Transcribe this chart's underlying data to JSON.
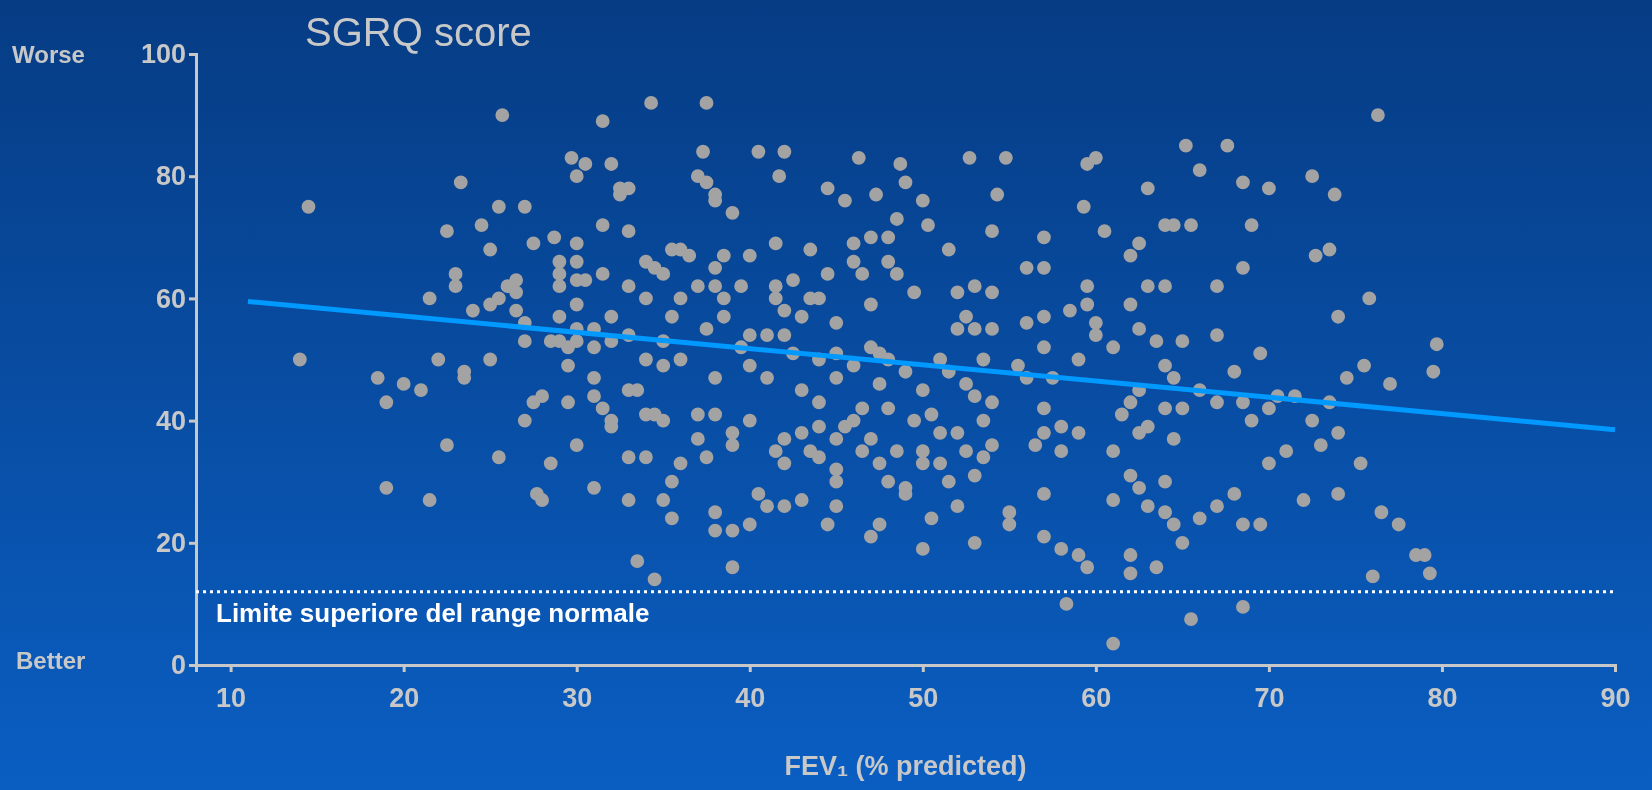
{
  "chart_data": {
    "type": "scatter",
    "title": "SGRQ score",
    "xlabel": "FEV₁ (% predicted)",
    "xlim": [
      8,
      90
    ],
    "ylim": [
      0,
      100
    ],
    "xticks": [
      10,
      20,
      30,
      40,
      50,
      60,
      70,
      80,
      90
    ],
    "yticks": [
      0,
      20,
      40,
      60,
      80,
      100
    ],
    "grid": false,
    "annotations": [
      "Worse",
      "Better"
    ],
    "ref_lines": [
      {
        "axis": "y",
        "value": 12,
        "label": "Limite superiore del range normale",
        "color": "#ffffff",
        "line_style": "dotted"
      }
    ],
    "series": [
      {
        "marker": "circle",
        "color": "#a3a3a3",
        "x": [
          14.5,
          14,
          18.5,
          19,
          19,
          20,
          21,
          21.5,
          21.5,
          22,
          22.5,
          22.5,
          23,
          23,
          23.3,
          23.5,
          23.5,
          24,
          24.5,
          25,
          25,
          25,
          25.5,
          25.5,
          25.5,
          25.7,
          26,
          26.5,
          26.5,
          26.5,
          27,
          27,
          27,
          27,
          27.5,
          27.5,
          27.7,
          28,
          28,
          28.5,
          28.5,
          28.7,
          29,
          29,
          29,
          29,
          29,
          29.5,
          29.5,
          29.5,
          29.7,
          30,
          30,
          30,
          30,
          30,
          30,
          30,
          30,
          30.5,
          30.5,
          31,
          31,
          31,
          31,
          31,
          31.5,
          31.5,
          31.5,
          31.5,
          32,
          32,
          32,
          32,
          32,
          32.5,
          32.5,
          33,
          33,
          33,
          33,
          33,
          33,
          33,
          33.5,
          33.5,
          34,
          34,
          34,
          34,
          34,
          34.3,
          34.5,
          34.5,
          34.5,
          35,
          35,
          35,
          35,
          35,
          35.5,
          35.5,
          35.5,
          35.5,
          36,
          36,
          36,
          36,
          36.5,
          37,
          37,
          37,
          37,
          37.3,
          37.5,
          37.5,
          37.5,
          37.5,
          38,
          38,
          38,
          38,
          38,
          38,
          38,
          38,
          38.5,
          38.5,
          38.5,
          39,
          39,
          39,
          39,
          39,
          39.5,
          39.5,
          40,
          40,
          40,
          40,
          40,
          40.5,
          40.5,
          41,
          41,
          41,
          41.5,
          41.5,
          41.5,
          41.5,
          41.7,
          42,
          42,
          42,
          42,
          42,
          42,
          42.5,
          42.5,
          43,
          43,
          43,
          43,
          43.5,
          43.5,
          43.5,
          44,
          44,
          44,
          44,
          44,
          44.5,
          44.5,
          44.5,
          45,
          45,
          45,
          45,
          45,
          45,
          45,
          45.5,
          45.5,
          46,
          46,
          46,
          46,
          46.3,
          46.5,
          46.5,
          46.5,
          47,
          47,
          47,
          47,
          47,
          47.3,
          47.5,
          47.5,
          47.5,
          47.5,
          48,
          48,
          48,
          48,
          48,
          48.5,
          48.5,
          48.5,
          48.7,
          49,
          49,
          49,
          49,
          49.5,
          49.5,
          50,
          50,
          50,
          50,
          50,
          50.3,
          50.5,
          50.5,
          51,
          51,
          51,
          51.5,
          51.5,
          51.5,
          52,
          52,
          52,
          52,
          52.5,
          52.5,
          52.5,
          52.7,
          53,
          53,
          53,
          53,
          53,
          53.5,
          53.5,
          53.5,
          54,
          54,
          54,
          54,
          54,
          54.3,
          54.8,
          55,
          55,
          55.5,
          56,
          56,
          56,
          56.5,
          57,
          57,
          57,
          57,
          57,
          57,
          57,
          57,
          57.5,
          58,
          58,
          58,
          58.3,
          58.5,
          59,
          59,
          59,
          59.3,
          59.5,
          59.5,
          59.5,
          59.5,
          60,
          60,
          60,
          60.5,
          61,
          61,
          61,
          61,
          61.5,
          62,
          62,
          62,
          62,
          62,
          62,
          62.5,
          62.5,
          62.5,
          62.5,
          62.5,
          63,
          63,
          63,
          63,
          63.5,
          63.5,
          64,
          64,
          64,
          64,
          64,
          64,
          64.5,
          64.5,
          64.5,
          64.5,
          65,
          65,
          65,
          65.2,
          65.5,
          65.5,
          66,
          66,
          66,
          67,
          67,
          67,
          67,
          67.6,
          68,
          68,
          68.5,
          68.5,
          68.5,
          68.5,
          68.5,
          69,
          69,
          69.5,
          69.5,
          70,
          70,
          70,
          70.5,
          71,
          71.5,
          72,
          72.5,
          72.5,
          72.7,
          73,
          73.5,
          73.5,
          73.8,
          74,
          74,
          74,
          74.5,
          75.3,
          75.5,
          75.8,
          76,
          76.3,
          76.5,
          77,
          77.5,
          78.5,
          79,
          79.3,
          79.5,
          79.7
        ],
        "values": [
          75,
          50,
          47,
          43,
          29,
          46,
          45,
          27,
          60,
          50,
          71,
          36,
          64,
          62,
          79,
          48,
          47,
          58,
          72,
          68,
          59,
          50,
          60,
          34,
          75,
          90,
          62,
          61,
          58,
          63,
          75,
          56,
          53,
          40,
          69,
          43,
          28,
          44,
          27,
          53,
          33,
          70,
          66,
          64,
          62,
          57,
          53,
          43,
          52,
          49,
          83,
          80,
          69,
          66,
          63,
          59,
          55,
          53,
          36,
          82,
          63,
          55,
          52,
          47,
          44,
          29,
          89,
          72,
          64,
          42,
          82,
          57,
          53,
          40,
          39,
          78,
          77,
          78,
          71,
          62,
          54,
          45,
          34,
          27,
          45,
          17,
          66,
          60,
          50,
          41,
          34,
          92,
          65,
          41,
          14,
          64,
          53,
          40,
          27,
          49,
          68,
          57,
          30,
          24,
          68,
          60,
          50,
          33,
          67,
          80,
          62,
          41,
          37,
          84,
          79,
          55,
          92,
          34,
          77,
          76,
          65,
          62,
          47,
          41,
          25,
          22,
          67,
          60,
          57,
          74,
          38,
          36,
          22,
          16,
          52,
          62,
          67,
          54,
          49,
          40,
          23,
          28,
          84,
          54,
          47,
          26,
          69,
          62,
          60,
          35,
          80,
          84,
          58,
          54,
          37,
          33,
          26,
          63,
          51,
          57,
          45,
          38,
          27,
          68,
          60,
          35,
          60,
          50,
          43,
          39,
          34,
          78,
          64,
          23,
          56,
          51,
          47,
          37,
          32,
          30,
          26,
          76,
          39,
          69,
          66,
          49,
          40,
          83,
          64,
          42,
          35,
          70,
          59,
          52,
          37,
          21,
          77,
          51,
          46,
          33,
          23,
          70,
          66,
          50,
          42,
          30,
          73,
          64,
          35,
          82,
          79,
          48,
          29,
          28,
          61,
          40,
          76,
          45,
          35,
          33,
          19,
          72,
          41,
          24,
          50,
          38,
          33,
          68,
          48,
          30,
          61,
          55,
          38,
          26,
          57,
          46,
          35,
          83,
          62,
          55,
          44,
          31,
          20,
          50,
          40,
          34,
          71,
          61,
          55,
          43,
          36,
          77,
          83,
          25,
          23,
          49,
          65,
          56,
          47,
          36,
          70,
          65,
          57,
          52,
          42,
          38,
          28,
          21,
          47,
          39,
          35,
          19,
          10,
          58,
          50,
          38,
          18,
          75,
          82,
          62,
          59,
          16,
          83,
          56,
          54,
          71,
          35,
          27,
          52,
          3.5,
          41,
          67,
          59,
          43,
          31,
          18,
          15,
          69,
          55,
          45,
          38,
          29,
          78,
          62,
          39,
          26,
          53,
          16,
          72,
          62,
          49,
          42,
          30,
          25,
          72,
          47,
          37,
          23,
          53,
          42,
          20,
          85,
          72,
          7.5,
          45,
          24,
          81,
          62,
          54,
          43,
          26,
          85,
          48,
          28,
          79,
          65,
          43,
          23,
          9.5,
          72,
          40,
          51,
          23,
          78,
          42,
          33,
          44,
          35,
          44,
          27,
          80,
          40,
          67,
          36,
          68,
          43,
          77,
          57,
          28,
          38,
          47,
          33,
          49,
          60,
          14.5,
          90,
          25,
          46,
          23,
          18,
          18,
          15,
          48,
          52.5
        ]
      },
      {
        "type": "line",
        "color": "#0099ff",
        "x": [
          11,
          90
        ],
        "values": [
          59.5,
          38.5
        ]
      }
    ]
  }
}
